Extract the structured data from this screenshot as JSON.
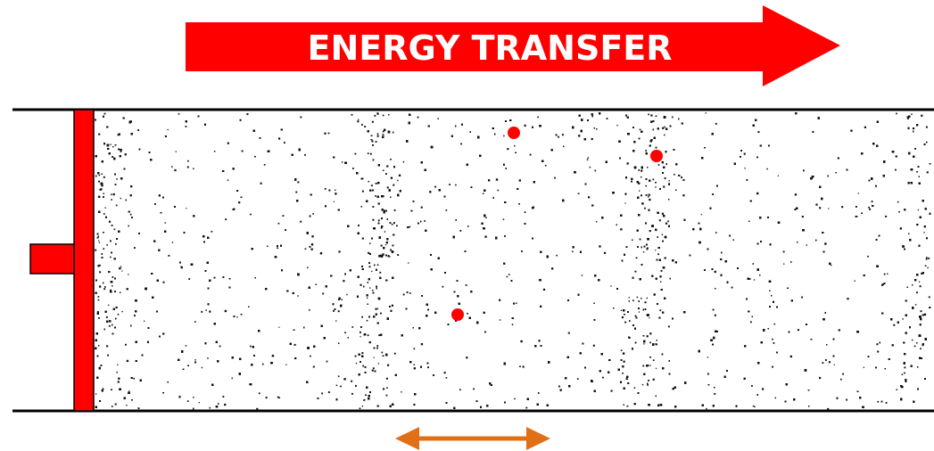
{
  "title": {
    "text": "ENERGY TRANSFER"
  },
  "colors": {
    "accent_red": "#ff0000",
    "arrow_orange": "#e07018",
    "particle_black": "#111111",
    "tube_line": "#000000",
    "background": "#ffffff"
  },
  "icons": {
    "energy_arrow": "right-arrow-icon",
    "wavelength_arrow": "double-headed-arrow-icon"
  }
}
